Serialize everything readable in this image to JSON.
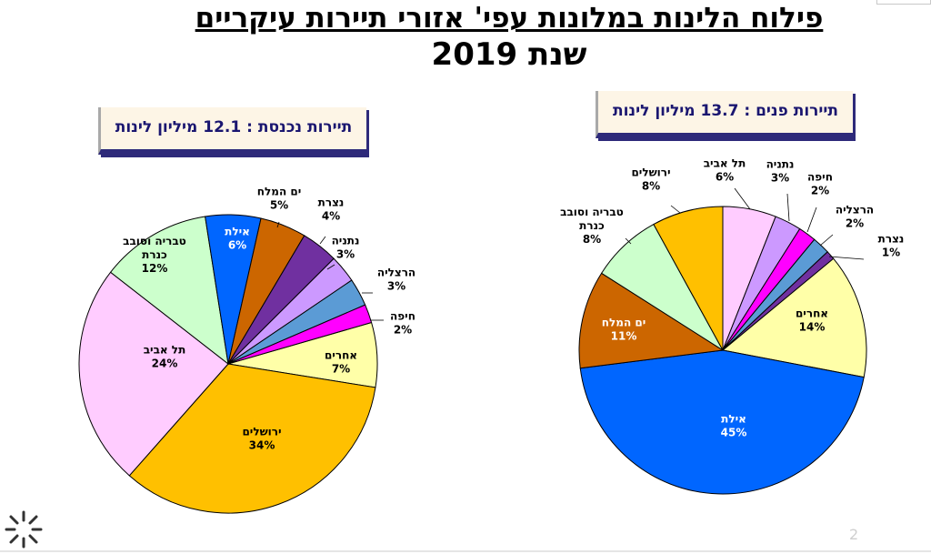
{
  "title": "פילוח הלינות במלונות עפי' אזורי תיירות עיקריים",
  "subtitle": "שנת 2019",
  "page_number": "2",
  "chart_data": [
    {
      "type": "pie",
      "title": "תיירות נכנסת : 12.1 מיליון לינות",
      "slices": [
        {
          "label": "אחרים",
          "value": 7,
          "pct": "7%",
          "color": "#ffffa8"
        },
        {
          "label": "ירושלים",
          "value": 34,
          "pct": "34%",
          "color": "#ffc000"
        },
        {
          "label": "תל אביב",
          "value": 24,
          "pct": "24%",
          "color": "#ffccff"
        },
        {
          "label": "טבריה וסובב כנרת",
          "value": 12,
          "pct": "12%",
          "color": "#ccffcc"
        },
        {
          "label": "אילת",
          "value": 6,
          "pct": "6%",
          "color": "#0066ff"
        },
        {
          "label": "ים המלח",
          "value": 5,
          "pct": "5%",
          "color": "#cc6600"
        },
        {
          "label": "נצרת",
          "value": 4,
          "pct": "4%",
          "color": "#7030a0"
        },
        {
          "label": "נתניה",
          "value": 3,
          "pct": "3%",
          "color": "#cc99ff"
        },
        {
          "label": "הרצליה",
          "value": 3,
          "pct": "3%",
          "color": "#5b9bd5"
        },
        {
          "label": "חיפה",
          "value": 2,
          "pct": "2%",
          "color": "#ff00ff"
        }
      ]
    },
    {
      "type": "pie",
      "title": "תיירות פנים : 13.7 מיליון לינות",
      "slices": [
        {
          "label": "תל אביב",
          "value": 6,
          "pct": "6%",
          "color": "#ffccff"
        },
        {
          "label": "נתניה",
          "value": 3,
          "pct": "3%",
          "color": "#cc99ff"
        },
        {
          "label": "חיפה",
          "value": 2,
          "pct": "2%",
          "color": "#ff00ff"
        },
        {
          "label": "הרצליה",
          "value": 2,
          "pct": "2%",
          "color": "#5b9bd5"
        },
        {
          "label": "נצרת",
          "value": 1,
          "pct": "1%",
          "color": "#7030a0"
        },
        {
          "label": "אחרים",
          "value": 14,
          "pct": "14%",
          "color": "#ffffa8"
        },
        {
          "label": "אילת",
          "value": 45,
          "pct": "45%",
          "color": "#0066ff"
        },
        {
          "label": "ים המלח",
          "value": 11,
          "pct": "11%",
          "color": "#cc6600"
        },
        {
          "label": "טבריה וסובב כנרת",
          "value": 8,
          "pct": "8%",
          "color": "#ccffcc"
        },
        {
          "label": "ירושלים",
          "value": 8,
          "pct": "8%",
          "color": "#ffc000"
        }
      ]
    }
  ]
}
